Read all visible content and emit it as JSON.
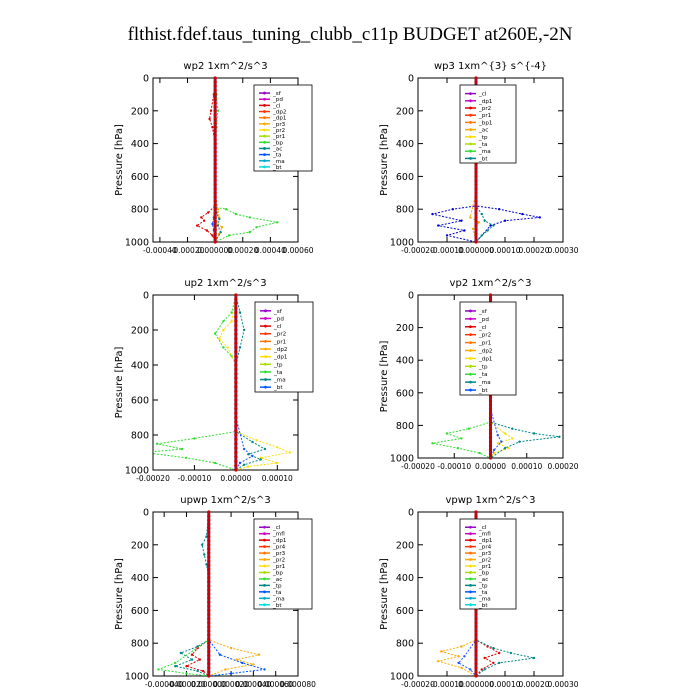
{
  "figure": {
    "title": "flthist.fdef.taus_tuning_clubb_c11p  BUDGET at260E,-2N",
    "ylabel": "Pressure [hPa]"
  },
  "chart_data": [
    {
      "type": "line",
      "title": "wp2  1xm^2/s^3",
      "ylabel": "Pressure [hPa]",
      "y_reversed": true,
      "ylim": [
        0,
        1000
      ],
      "yticks": [
        0,
        200,
        400,
        600,
        800,
        1000
      ],
      "ytick_labels": [
        "0",
        "200",
        "400",
        "600",
        "800",
        "1000"
      ],
      "xlim": [
        -0.00045,
        0.0006
      ],
      "xticks": [
        -0.0004,
        -0.0002,
        0.0,
        0.0002,
        0.0004,
        0.0006
      ],
      "xtick_labels": [
        "-0.00040",
        "-0.00020",
        "0.000000",
        "0.00020",
        "0.00040",
        "0.00060"
      ],
      "legend": [
        "_sf",
        "_pd",
        "_cl",
        "_dp2",
        "_dp1",
        "_pr3",
        "_pr2",
        "_pr1",
        "_bp",
        "_ac",
        "_ta",
        "_ma",
        "_bt"
      ],
      "series": [
        {
          "name": "_ac",
          "color": "#33dd33",
          "x": [
            0,
            1e-05,
            2e-05,
            1e-05,
            0,
            0,
            1e-05,
            8e-05,
            0.00015,
            0.00025,
            0.00045,
            0.0003,
            0.00025,
            0.0001,
            0
          ],
          "y": [
            0,
            100,
            200,
            300,
            400,
            700,
            790,
            800,
            830,
            850,
            880,
            910,
            940,
            960,
            1000
          ]
        },
        {
          "name": "_dp1",
          "color": "#dd0000",
          "x": [
            0,
            -1e-05,
            -3e-05,
            -4e-05,
            -2e-05,
            0,
            0,
            -5e-05,
            -0.0001,
            -8e-05,
            -0.00013,
            -6e-05,
            -2e-05,
            0
          ],
          "y": [
            0,
            100,
            200,
            250,
            300,
            400,
            780,
            820,
            850,
            870,
            900,
            930,
            960,
            1000
          ]
        },
        {
          "name": "_pr2",
          "color": "#ffaa00",
          "x": [
            0,
            0,
            0,
            2e-05,
            3e-05,
            1e-05,
            5e-05,
            3e-05,
            0
          ],
          "y": [
            0,
            400,
            700,
            800,
            850,
            880,
            910,
            950,
            1000
          ]
        },
        {
          "name": "_bp",
          "color": "#008888",
          "x": [
            0,
            0,
            0,
            1e-05,
            3e-05,
            2e-05,
            4e-05,
            0
          ],
          "y": [
            0,
            400,
            700,
            820,
            860,
            900,
            940,
            1000
          ]
        },
        {
          "name": "_ta",
          "color": "#2255ff",
          "x": [
            0,
            0,
            0,
            -1e-05,
            -2e-05,
            -1e-05,
            0
          ],
          "y": [
            0,
            400,
            700,
            850,
            890,
            930,
            1000
          ]
        },
        {
          "name": "_bt",
          "color": "#00cccc",
          "x": [
            0,
            0,
            0
          ],
          "y": [
            0,
            500,
            1000
          ]
        }
      ]
    },
    {
      "type": "line",
      "title": "wp3  1xm^{3} s^{-4}",
      "ylabel": "Pressure [hPa]",
      "y_reversed": true,
      "ylim": [
        0,
        1000
      ],
      "yticks": [
        0,
        200,
        400,
        600,
        800,
        1000
      ],
      "ytick_labels": [
        "0",
        "200",
        "400",
        "600",
        "800",
        "1000"
      ],
      "xlim": [
        -0.0002,
        0.0003
      ],
      "xticks": [
        -0.0002,
        -0.0001,
        0.0,
        0.0001,
        0.0002,
        0.0003
      ],
      "xtick_labels": [
        "-0.00020",
        "-0.00010",
        "0.000000",
        "0.00010",
        "0.00020",
        "0.00030"
      ],
      "legend": [
        "_cl",
        "_dp1",
        "_pr2",
        "_pr1",
        "_bp1",
        "_ac",
        "_tp",
        "_ta",
        "_ma",
        "_bt"
      ],
      "series": [
        {
          "name": "_tp",
          "color": "#0000cc",
          "x": [
            0,
            0,
            0,
            -8e-05,
            -0.00015,
            -5e-05,
            -0.00013,
            -4e-05,
            -0.0001,
            0
          ],
          "y": [
            0,
            400,
            780,
            800,
            830,
            870,
            900,
            930,
            960,
            1000
          ]
        },
        {
          "name": "_ta",
          "color": "#0000cc",
          "x": [
            0,
            0,
            0,
            8e-05,
            0.00016,
            0.00022,
            0.0001,
            5e-05,
            0
          ],
          "y": [
            0,
            400,
            780,
            800,
            830,
            850,
            870,
            900,
            1000
          ]
        },
        {
          "name": "_bp1",
          "color": "#008888",
          "x": [
            0,
            0,
            0,
            2e-05,
            3e-05,
            6e-05,
            4e-05,
            2e-05,
            0
          ],
          "y": [
            0,
            400,
            780,
            830,
            870,
            900,
            930,
            960,
            1000
          ]
        },
        {
          "name": "_pr2",
          "color": "#ffaa00",
          "x": [
            0,
            0,
            -2e-05,
            1e-05,
            -1e-05,
            0
          ],
          "y": [
            0,
            700,
            850,
            880,
            920,
            1000
          ]
        },
        {
          "name": "_cl",
          "color": "#dd0000",
          "x": [
            0,
            0,
            0
          ],
          "y": [
            0,
            500,
            1000
          ]
        }
      ]
    },
    {
      "type": "line",
      "title": "up2  1xm^2/s^3",
      "ylabel": "Pressure [hPa]",
      "y_reversed": true,
      "ylim": [
        0,
        1000
      ],
      "yticks": [
        0,
        200,
        400,
        600,
        800,
        1000
      ],
      "ytick_labels": [
        "0",
        "200",
        "400",
        "600",
        "800",
        "1000"
      ],
      "xlim": [
        -0.0002,
        0.00015
      ],
      "xticks": [
        -0.0002,
        -0.0001,
        0.0,
        0.0001
      ],
      "xtick_labels": [
        "-0.00020",
        "-0.00010",
        "0.00000",
        "0.00010"
      ],
      "legend": [
        "_sf",
        "_pd",
        "_cl",
        "_pr2",
        "_pr1",
        "_dp2",
        "_dp1",
        "_tp",
        "_ta",
        "_ma",
        "_bt"
      ],
      "series": [
        {
          "name": "_dp1",
          "color": "#33dd33",
          "x": [
            0,
            -1e-05,
            -3e-05,
            -5e-05,
            -3e-05,
            -1e-05,
            0,
            0,
            -0.0001,
            -0.00019,
            -0.00013,
            -0.00022,
            -0.00012,
            -5e-05,
            0
          ],
          "y": [
            0,
            100,
            150,
            220,
            300,
            350,
            400,
            780,
            820,
            850,
            880,
            900,
            930,
            960,
            1000
          ]
        },
        {
          "name": "_pr1",
          "color": "#ffdd00",
          "x": [
            0,
            -1e-05,
            -3e-05,
            -4e-05,
            -2e-05,
            0,
            0,
            5e-05,
            0.0001,
            0.00013,
            6e-05,
            0.0001,
            3e-05,
            0
          ],
          "y": [
            0,
            150,
            200,
            250,
            300,
            400,
            780,
            830,
            870,
            900,
            930,
            960,
            980,
            1000
          ]
        },
        {
          "name": "_tp",
          "color": "#008888",
          "x": [
            0,
            1e-05,
            2e-05,
            1e-05,
            0,
            0,
            4e-05,
            7e-05,
            3e-05,
            6e-05,
            2e-05,
            0
          ],
          "y": [
            0,
            100,
            200,
            300,
            400,
            780,
            840,
            880,
            910,
            940,
            970,
            1000
          ]
        },
        {
          "name": "_ta",
          "color": "#2255ff",
          "x": [
            0,
            0,
            2e-05,
            4e-05,
            1e-05,
            0
          ],
          "y": [
            0,
            700,
            880,
            920,
            960,
            1000
          ]
        },
        {
          "name": "_cl",
          "color": "#dd0000",
          "x": [
            0,
            0,
            0
          ],
          "y": [
            0,
            500,
            1000
          ]
        }
      ]
    },
    {
      "type": "line",
      "title": "vp2  1xm^2/s^3",
      "ylabel": "Pressure [hPa]",
      "y_reversed": true,
      "ylim": [
        0,
        1000
      ],
      "yticks": [
        0,
        200,
        400,
        600,
        800,
        1000
      ],
      "ytick_labels": [
        "0",
        "200",
        "400",
        "600",
        "800",
        "1000"
      ],
      "xlim": [
        -0.0002,
        0.0002
      ],
      "xticks": [
        -0.0002,
        -0.0001,
        0.0,
        0.0001,
        0.0002
      ],
      "xtick_labels": [
        "-0.00020",
        "-0.00010",
        "0.00000",
        "0.00010",
        "0.00020"
      ],
      "legend": [
        "_sf",
        "_pd",
        "_cl",
        "_pr2",
        "_pr1",
        "_dp2",
        "_dp1",
        "_tp",
        "_ta",
        "_ma",
        "_bt"
      ],
      "series": [
        {
          "name": "_dp1",
          "color": "#33dd33",
          "x": [
            0,
            -1e-05,
            -2e-05,
            -4e-05,
            -2e-05,
            0,
            0,
            -6e-05,
            -0.00012,
            -8e-05,
            -0.00016,
            -9e-05,
            -3e-05,
            0
          ],
          "y": [
            0,
            100,
            180,
            250,
            320,
            400,
            780,
            820,
            850,
            880,
            910,
            940,
            970,
            1000
          ]
        },
        {
          "name": "_pr1",
          "color": "#ffdd00",
          "x": [
            0,
            -1e-05,
            -2e-05,
            -3e-05,
            -1e-05,
            0,
            0,
            4e-05,
            6e-05,
            2e-05,
            5e-05,
            1e-05,
            0
          ],
          "y": [
            0,
            150,
            200,
            260,
            320,
            400,
            780,
            850,
            880,
            910,
            940,
            970,
            1000
          ]
        },
        {
          "name": "_tp",
          "color": "#008888",
          "x": [
            0,
            1e-05,
            2e-05,
            1e-05,
            0,
            0,
            6e-05,
            0.00012,
            0.00019,
            8e-05,
            4e-05,
            0
          ],
          "y": [
            0,
            100,
            180,
            300,
            400,
            780,
            820,
            850,
            870,
            900,
            940,
            1000
          ]
        },
        {
          "name": "_ta",
          "color": "#2255ff",
          "x": [
            0,
            0,
            2e-05,
            3e-05,
            1e-05,
            0
          ],
          "y": [
            0,
            700,
            860,
            900,
            950,
            1000
          ]
        },
        {
          "name": "_cl",
          "color": "#dd0000",
          "x": [
            0,
            0,
            0
          ],
          "y": [
            0,
            500,
            1000
          ]
        }
      ]
    },
    {
      "type": "line",
      "title": "upwp  1xm^2/s^3",
      "ylabel": "Pressure [hPa]",
      "y_reversed": true,
      "ylim": [
        0,
        1000
      ],
      "yticks": [
        0,
        200,
        400,
        600,
        800,
        1000
      ],
      "ytick_labels": [
        "0",
        "200",
        "400",
        "600",
        "800",
        "1000"
      ],
      "xlim": [
        -5e-05,
        8e-05
      ],
      "xticks": [
        -4e-05,
        -2e-05,
        0.0,
        2e-05,
        4e-05,
        6e-05,
        8e-05
      ],
      "xtick_labels": [
        "-0.000040",
        "-0.000020",
        "0.000000",
        "0.000020",
        "0.000040",
        "0.000060",
        "0.000080"
      ],
      "legend": [
        "_cl",
        "_mfl",
        "_dp1",
        "_pr4",
        "_pr3",
        "_pr2",
        "_pr1",
        "_bp",
        "_ac",
        "_tp",
        "_ta",
        "_ma",
        "_bt"
      ],
      "series": [
        {
          "name": "_bp",
          "color": "#008888",
          "x": [
            0,
            -2e-06,
            -6e-06,
            -4e-06,
            -2e-06,
            0,
            0,
            -1e-05,
            -2.5e-05,
            -1.5e-05,
            -3e-05,
            -1e-05,
            0
          ],
          "y": [
            0,
            150,
            200,
            260,
            320,
            400,
            780,
            820,
            860,
            900,
            940,
            970,
            1000
          ]
        },
        {
          "name": "_pr1",
          "color": "#ffaa00",
          "x": [
            0,
            0,
            0,
            2e-05,
            4.5e-05,
            2.5e-05,
            4e-05,
            1.5e-05,
            0
          ],
          "y": [
            0,
            400,
            780,
            830,
            870,
            900,
            930,
            960,
            1000
          ]
        },
        {
          "name": "_tp",
          "color": "#0055ff",
          "x": [
            0,
            0,
            0,
            1e-05,
            3e-05,
            5e-05,
            2e-05,
            0
          ],
          "y": [
            0,
            400,
            780,
            870,
            920,
            960,
            985,
            1000
          ]
        },
        {
          "name": "_dp1",
          "color": "#dd0000",
          "x": [
            0,
            0,
            0,
            -1e-05,
            -1.5e-05,
            -8e-06,
            -2e-05,
            -5e-06,
            0
          ],
          "y": [
            0,
            400,
            780,
            830,
            870,
            900,
            940,
            970,
            1000
          ]
        },
        {
          "name": "_ac",
          "color": "#33dd33",
          "x": [
            0,
            0,
            0,
            -3e-05,
            -4.5e-05,
            -2e-05,
            0
          ],
          "y": [
            0,
            400,
            780,
            920,
            960,
            985,
            1000
          ]
        },
        {
          "name": "_cl",
          "color": "#9900cc",
          "x": [
            0,
            0,
            0
          ],
          "y": [
            0,
            500,
            1000
          ]
        }
      ]
    },
    {
      "type": "line",
      "title": "vpwp  1xm^2/s^3",
      "ylabel": "Pressure [hPa]",
      "y_reversed": true,
      "ylim": [
        0,
        1000
      ],
      "yticks": [
        0,
        200,
        400,
        600,
        800,
        1000
      ],
      "ytick_labels": [
        "0",
        "200",
        "400",
        "600",
        "800",
        "1000"
      ],
      "xlim": [
        -0.0002,
        0.0003
      ],
      "xticks": [
        -0.0002,
        -0.0001,
        0.0,
        0.0001,
        0.0002,
        0.0003
      ],
      "xtick_labels": [
        "-0.00020",
        "-0.00010",
        "0.000000",
        "0.00010",
        "0.00020",
        "0.00030"
      ],
      "legend": [
        "_cl",
        "_mfl",
        "_dp1",
        "_pr4",
        "_pr3",
        "_pr2",
        "_pr1",
        "_bp",
        "_ac",
        "_tp",
        "_ta",
        "_ma",
        "_bt"
      ],
      "series": [
        {
          "name": "_pr1",
          "color": "#ffaa00",
          "x": [
            0,
            0,
            0,
            -5e-05,
            -0.00012,
            -6e-05,
            -0.00013,
            -5e-05,
            0
          ],
          "y": [
            0,
            400,
            780,
            820,
            850,
            880,
            910,
            950,
            1000
          ]
        },
        {
          "name": "_dp1",
          "color": "#dd0000",
          "x": [
            0,
            0,
            0,
            4e-05,
            8e-05,
            3e-05,
            6e-05,
            2e-05,
            0
          ],
          "y": [
            0,
            400,
            780,
            820,
            860,
            890,
            920,
            960,
            1000
          ]
        },
        {
          "name": "_tp",
          "color": "#008888",
          "x": [
            0,
            0,
            0,
            6e-05,
            0.00012,
            0.0002,
            8e-05,
            3e-05,
            0
          ],
          "y": [
            0,
            400,
            780,
            830,
            860,
            890,
            920,
            960,
            1000
          ]
        },
        {
          "name": "_ta",
          "color": "#2255ff",
          "x": [
            0,
            0,
            0,
            -4e-05,
            -6e-05,
            -2e-05,
            0
          ],
          "y": [
            0,
            400,
            780,
            880,
            920,
            960,
            1000
          ]
        },
        {
          "name": "_cl",
          "color": "#9900cc",
          "x": [
            0,
            0,
            0,
            -5e-06,
            0,
            0
          ],
          "y": [
            0,
            150,
            200,
            210,
            230,
            1000
          ]
        }
      ]
    }
  ]
}
